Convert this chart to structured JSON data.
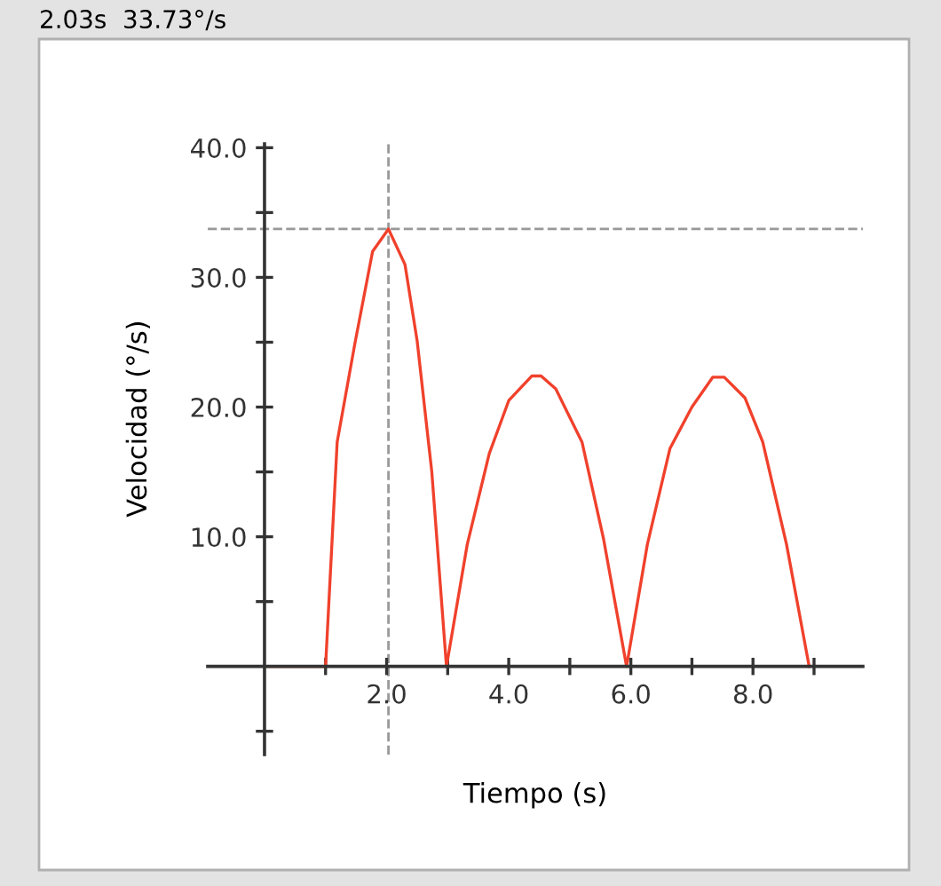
{
  "chart_data": {
    "type": "line",
    "title": "2.03s  33.73°/s",
    "xlabel": "Tiempo (s)",
    "ylabel": "Velocidad (°/s)",
    "series": [
      {
        "color": "#f0412c",
        "x": [
          0,
          1,
          1.19,
          1.48,
          1.77,
          2.03,
          2.3,
          2.5,
          2.74,
          2.98,
          3.32,
          3.68,
          4.0,
          4.38,
          4.53,
          4.77,
          5.2,
          5.55,
          5.93,
          6.27,
          6.64,
          7.0,
          7.34,
          7.53,
          7.87,
          8.16,
          8.55,
          8.92
        ],
        "values": [
          0,
          0,
          17.3,
          24.9,
          32,
          33.73,
          31,
          25.1,
          15,
          0,
          9.4,
          16.4,
          20.5,
          22.4,
          22.4,
          21.4,
          17.3,
          9.9,
          0,
          9.4,
          16.8,
          20,
          22.3,
          22.3,
          20.7,
          17.3,
          9.4,
          0
        ]
      }
    ],
    "xlim": [
      -0.93,
      9.8
    ],
    "ylim": [
      -6.8,
      40.3
    ],
    "xticks": [
      {
        "value": 1,
        "label": null
      },
      {
        "value": 2,
        "label": "2.0"
      },
      {
        "value": 3,
        "label": null
      },
      {
        "value": 4,
        "label": "4.0"
      },
      {
        "value": 5,
        "label": null
      },
      {
        "value": 6,
        "label": "6.0"
      },
      {
        "value": 7,
        "label": null
      },
      {
        "value": 8,
        "label": "8.0"
      },
      {
        "value": 9,
        "label": null
      }
    ],
    "yticks": [
      {
        "value": -5,
        "label": null
      },
      {
        "value": 5,
        "label": null
      },
      {
        "value": 10,
        "label": "10.0"
      },
      {
        "value": 15,
        "label": null
      },
      {
        "value": 20,
        "label": "20.0"
      },
      {
        "value": 25,
        "label": null
      },
      {
        "value": 30,
        "label": "30.0"
      },
      {
        "value": 35,
        "label": null
      },
      {
        "value": 40,
        "label": "40.0"
      }
    ],
    "ref_lines": [
      {
        "axis": "x",
        "value": 2.03,
        "color": "#999999",
        "line_style": "dashed"
      },
      {
        "axis": "y",
        "value": 33.73,
        "color": "#999999",
        "line_style": "dashed"
      }
    ],
    "marker": "none",
    "line_style": "solid",
    "grid": false,
    "legend": false
  }
}
